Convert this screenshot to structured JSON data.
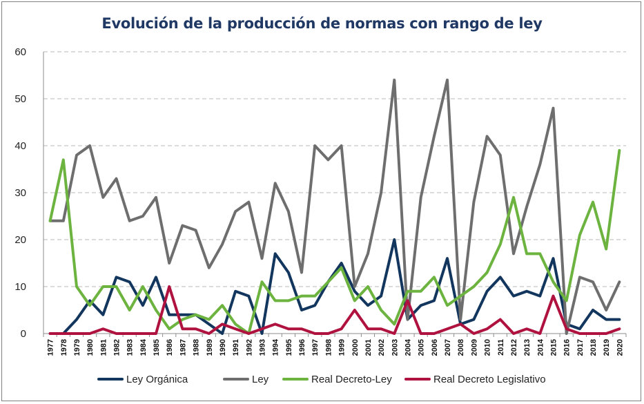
{
  "chart_data": {
    "type": "line",
    "title": "Evolución de la producción de normas con rango de ley",
    "xlabel": "",
    "ylabel": "",
    "ylim": [
      0,
      60
    ],
    "yticks": [
      0,
      10,
      20,
      30,
      40,
      50,
      60
    ],
    "grid": "horizontal dashed",
    "legend": "bottom",
    "categories": [
      "1977",
      "1978",
      "1979",
      "1980",
      "1981",
      "1982",
      "1983",
      "1984",
      "1985",
      "1986",
      "1987",
      "1988",
      "1989",
      "1990",
      "1991",
      "1992",
      "1993",
      "1994",
      "1995",
      "1996",
      "1997",
      "1998",
      "1999",
      "2000",
      "2001",
      "2002",
      "2003",
      "2004",
      "2005",
      "2006",
      "2007",
      "2008",
      "2009",
      "2010",
      "2011",
      "2012",
      "2013",
      "2014",
      "2015",
      "2016",
      "2017",
      "2018",
      "2019",
      "2020"
    ],
    "series": [
      {
        "name": "Ley Orgánica",
        "color": "#12365e",
        "values": [
          0,
          0,
          3,
          7,
          4,
          12,
          11,
          6,
          12,
          4,
          4,
          4,
          2,
          0,
          9,
          8,
          0,
          17,
          13,
          5,
          6,
          11,
          15,
          9,
          6,
          8,
          20,
          3,
          6,
          7,
          16,
          2,
          3,
          9,
          12,
          8,
          9,
          8,
          16,
          2,
          1,
          5,
          3,
          3
        ]
      },
      {
        "name": "Ley",
        "color": "#6e6e6e",
        "values": [
          24,
          24,
          38,
          40,
          29,
          33,
          24,
          25,
          29,
          15,
          23,
          22,
          14,
          19,
          26,
          28,
          16,
          32,
          26,
          13,
          40,
          37,
          40,
          10,
          17,
          30,
          54,
          3,
          29,
          42,
          54,
          3,
          28,
          42,
          38,
          17,
          27,
          36,
          48,
          0,
          12,
          11,
          5,
          11
        ]
      },
      {
        "name": "Real Decreto-Ley",
        "color": "#6cb33f",
        "values": [
          24,
          37,
          10,
          6,
          10,
          10,
          5,
          10,
          5,
          1,
          3,
          4,
          3,
          6,
          2,
          0,
          11,
          7,
          7,
          8,
          8,
          11,
          14,
          7,
          10,
          5,
          2,
          9,
          9,
          12,
          6,
          8,
          10,
          13,
          19,
          29,
          17,
          17,
          11,
          7,
          21,
          28,
          18,
          39
        ]
      },
      {
        "name": "Real Decreto Legislativo",
        "color": "#b0123f",
        "values": [
          0,
          0,
          0,
          0,
          1,
          0,
          0,
          0,
          0,
          10,
          1,
          1,
          0,
          2,
          1,
          0,
          1,
          2,
          1,
          1,
          0,
          0,
          1,
          5,
          1,
          1,
          0,
          7,
          0,
          0,
          1,
          2,
          0,
          1,
          3,
          0,
          1,
          0,
          8,
          1,
          0,
          0,
          0,
          1
        ]
      }
    ]
  }
}
